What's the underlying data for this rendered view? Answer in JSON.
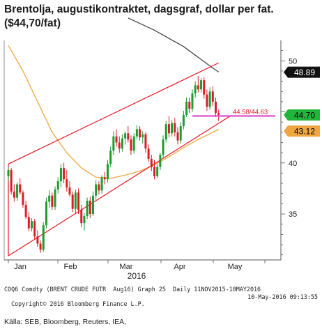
{
  "title": "Brentolja, augustikontraktet, dagsgraf, dollar per fat. ($44,70/fat)",
  "footer": {
    "line1": "COQ6 Comdty (BRENT CRUDE FUTR  Aug16) Graph 25  Daily 11NOV2015-10MAY2016",
    "line2_left": "Copyright© 2016 Bloomberg Finance L.P.",
    "line2_right": "10-May-2016 09:13:55"
  },
  "source": "Källa: SEB, Bloomberg, Reuters, IEA,",
  "chart_data": {
    "type": "candlestick",
    "xlabel": "2016",
    "x_ticks": [
      "Jan",
      "Feb",
      "Mar",
      "Apr",
      "May"
    ],
    "y_ticks": [
      35,
      40,
      45,
      50
    ],
    "ylim": [
      30.5,
      52
    ],
    "y_axis_side": "right",
    "grid": false,
    "colors": {
      "up": "#1f9b2f",
      "down": "#d81f26",
      "channel": "#e8141e",
      "ma50": "#f0a640",
      "ma200": "#444444",
      "level": "#d648c8",
      "badge_last": "#22b53c",
      "badge_ma50": "#f0a640",
      "badge_ma200": "#111111"
    },
    "price_badges": [
      {
        "label": "48.89",
        "value": 48.89,
        "series": "ma200"
      },
      {
        "label": "44.70",
        "value": 44.7,
        "series": "last"
      },
      {
        "label": "43.12",
        "value": 43.12,
        "series": "ma50"
      }
    ],
    "level_annotation": {
      "label": "44.58/44.63",
      "value": 44.6
    },
    "candles": [
      [
        38.7,
        39.6,
        38.2,
        39.3
      ],
      [
        39.3,
        39.5,
        36.9,
        37.2
      ],
      [
        37.2,
        37.9,
        36.2,
        36.6
      ],
      [
        36.6,
        38.1,
        36.3,
        37.9
      ],
      [
        37.9,
        38.5,
        36.9,
        37.1
      ],
      [
        37.1,
        37.3,
        35.6,
        35.9
      ],
      [
        35.9,
        36.3,
        34.5,
        34.7
      ],
      [
        34.7,
        35.2,
        33.3,
        33.6
      ],
      [
        33.6,
        34.6,
        33.3,
        34.3
      ],
      [
        34.3,
        34.5,
        32.5,
        32.8
      ],
      [
        32.8,
        33.4,
        31.8,
        32.1
      ],
      [
        32.1,
        32.4,
        31.2,
        31.5
      ],
      [
        31.5,
        34.2,
        31.3,
        33.9
      ],
      [
        33.9,
        36.6,
        33.6,
        36.2
      ],
      [
        36.2,
        37.3,
        35.6,
        36.8
      ],
      [
        36.8,
        37.1,
        35.4,
        35.7
      ],
      [
        35.7,
        37.7,
        35.4,
        37.4
      ],
      [
        37.4,
        38.6,
        37.0,
        38.2
      ],
      [
        38.2,
        39.9,
        37.6,
        39.5
      ],
      [
        39.5,
        40.0,
        38.0,
        38.4
      ],
      [
        38.4,
        39.3,
        37.2,
        37.6
      ],
      [
        37.6,
        38.2,
        36.7,
        36.9
      ],
      [
        36.9,
        37.2,
        35.2,
        35.5
      ],
      [
        35.5,
        37.4,
        35.1,
        37.1
      ],
      [
        37.1,
        37.5,
        35.0,
        35.4
      ],
      [
        35.4,
        35.9,
        33.7,
        34.1
      ],
      [
        34.1,
        35.1,
        33.4,
        34.8
      ],
      [
        34.8,
        36.6,
        34.5,
        36.3
      ],
      [
        36.3,
        36.7,
        34.6,
        35.0
      ],
      [
        35.0,
        37.2,
        34.8,
        36.8
      ],
      [
        36.8,
        38.3,
        36.4,
        37.9
      ],
      [
        37.9,
        38.2,
        36.9,
        37.3
      ],
      [
        37.3,
        38.8,
        37.0,
        38.6
      ],
      [
        38.6,
        39.1,
        37.9,
        38.4
      ],
      [
        38.4,
        40.3,
        38.1,
        39.9
      ],
      [
        39.9,
        41.6,
        39.6,
        41.2
      ],
      [
        41.2,
        43.1,
        40.8,
        42.6
      ],
      [
        42.6,
        43.3,
        41.6,
        42.0
      ],
      [
        42.0,
        42.6,
        41.0,
        41.4
      ],
      [
        41.4,
        42.8,
        41.1,
        42.4
      ],
      [
        42.4,
        43.1,
        41.8,
        42.9
      ],
      [
        42.9,
        43.6,
        42.0,
        42.3
      ],
      [
        42.3,
        42.7,
        40.8,
        41.2
      ],
      [
        41.2,
        42.9,
        40.9,
        42.6
      ],
      [
        42.6,
        43.7,
        42.3,
        43.3
      ],
      [
        43.3,
        43.6,
        42.2,
        42.5
      ],
      [
        42.5,
        43.1,
        41.9,
        42.8
      ],
      [
        42.8,
        43.0,
        41.0,
        41.4
      ],
      [
        41.4,
        41.8,
        40.1,
        40.4
      ],
      [
        40.4,
        40.8,
        39.2,
        39.6
      ],
      [
        39.6,
        40.3,
        38.4,
        38.7
      ],
      [
        38.7,
        39.9,
        38.5,
        39.6
      ],
      [
        39.6,
        41.0,
        39.3,
        40.8
      ],
      [
        40.8,
        42.7,
        40.5,
        42.3
      ],
      [
        42.3,
        44.1,
        42.0,
        43.8
      ],
      [
        43.8,
        44.6,
        42.5,
        42.9
      ],
      [
        42.9,
        44.2,
        42.6,
        43.9
      ],
      [
        43.9,
        44.4,
        42.6,
        43.0
      ],
      [
        43.0,
        43.5,
        41.8,
        42.2
      ],
      [
        42.2,
        44.0,
        41.9,
        43.6
      ],
      [
        43.6,
        45.1,
        43.3,
        44.7
      ],
      [
        44.7,
        46.4,
        44.5,
        46.0
      ],
      [
        46.0,
        46.4,
        44.9,
        45.3
      ],
      [
        45.3,
        47.2,
        45.0,
        46.8
      ],
      [
        46.8,
        48.0,
        46.4,
        47.6
      ],
      [
        47.6,
        48.5,
        46.9,
        47.2
      ],
      [
        47.2,
        48.3,
        46.9,
        48.1
      ],
      [
        48.1,
        48.4,
        46.3,
        46.7
      ],
      [
        46.7,
        47.2,
        45.1,
        45.5
      ],
      [
        45.5,
        47.4,
        45.2,
        47.0
      ],
      [
        47.0,
        47.5,
        45.6,
        46.0
      ],
      [
        46.0,
        46.4,
        44.5,
        44.9
      ],
      [
        44.9,
        45.2,
        44.1,
        44.7
      ]
    ],
    "channel": {
      "upper": [
        {
          "i": 0,
          "v": 39.9
        },
        {
          "i": 72,
          "v": 49.8
        }
      ],
      "lower": [
        {
          "i": 0,
          "v": 30.9
        },
        {
          "i": 76,
          "v": 44.6
        }
      ]
    },
    "ma50": [
      [
        0,
        51.5
      ],
      [
        5,
        49.0
      ],
      [
        10,
        46.0
      ],
      [
        15,
        43.0
      ],
      [
        20,
        41.0
      ],
      [
        25,
        39.5
      ],
      [
        30,
        38.6
      ],
      [
        35,
        38.5
      ],
      [
        40,
        38.8
      ],
      [
        45,
        39.2
      ],
      [
        50,
        39.8
      ],
      [
        55,
        40.6
      ],
      [
        60,
        41.5
      ],
      [
        65,
        42.3
      ],
      [
        70,
        43.0
      ],
      [
        72,
        43.3
      ]
    ],
    "ma200": [
      [
        41,
        54.2
      ],
      [
        50,
        53.0
      ],
      [
        60,
        51.4
      ],
      [
        70,
        49.3
      ],
      [
        72,
        48.9
      ]
    ]
  }
}
